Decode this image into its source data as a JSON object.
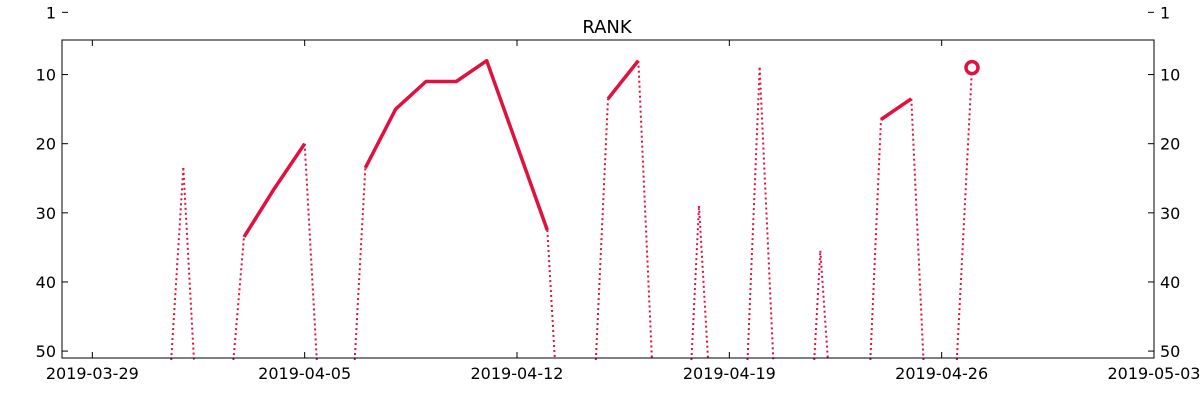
{
  "chart_data": {
    "type": "line",
    "title": "RANK",
    "xlabel": "",
    "ylabel": "",
    "x_axis": {
      "type": "date",
      "range": [
        "2019-03-28",
        "2019-05-03"
      ],
      "tick_labels": [
        "2019-03-29",
        "2019-04-05",
        "2019-04-12",
        "2019-04-19",
        "2019-04-26",
        "2019-05-03"
      ]
    },
    "y_axis": {
      "inverted": true,
      "range": [
        51,
        5
      ],
      "tick_values": [
        1,
        10,
        20,
        30,
        40,
        50
      ],
      "tick_labels": [
        "1",
        "10",
        "20",
        "30",
        "40",
        "50"
      ],
      "mirrored_right": true
    },
    "grid": false,
    "legend": "none",
    "colors": {
      "series": "#e0103f"
    },
    "series": [
      {
        "name": "",
        "points": [
          {
            "date": "2019-04-01",
            "rank": 23.5
          },
          {
            "date": "2019-04-03",
            "rank": 33.5
          },
          {
            "date": "2019-04-04",
            "rank": 26.5
          },
          {
            "date": "2019-04-05",
            "rank": 20.0
          },
          {
            "date": "2019-04-07",
            "rank": 23.5
          },
          {
            "date": "2019-04-08",
            "rank": 15.0
          },
          {
            "date": "2019-04-09",
            "rank": 11.0
          },
          {
            "date": "2019-04-10",
            "rank": 11.0
          },
          {
            "date": "2019-04-11",
            "rank": 8.0
          },
          {
            "date": "2019-04-13",
            "rank": 32.5
          },
          {
            "date": "2019-04-15",
            "rank": 13.5
          },
          {
            "date": "2019-04-16",
            "rank": 8.0
          },
          {
            "date": "2019-04-18",
            "rank": 29.0
          },
          {
            "date": "2019-04-20",
            "rank": 9.0
          },
          {
            "date": "2019-04-22",
            "rank": 35.5
          },
          {
            "date": "2019-04-24",
            "rank": 16.5
          },
          {
            "date": "2019-04-25",
            "rank": 13.5
          },
          {
            "date": "2019-04-27",
            "rank": 9.0
          }
        ],
        "solid_segments": [
          [
            "2019-04-03",
            "2019-04-05"
          ],
          [
            "2019-04-07",
            "2019-04-13"
          ],
          [
            "2019-04-15",
            "2019-04-16"
          ],
          [
            "2019-04-24",
            "2019-04-25"
          ]
        ],
        "dotted_dropouts": [
          {
            "from_date": "2019-03-31.6",
            "peak": "2019-04-01",
            "to_date": "2019-04-01.35"
          },
          {
            "from_date": "2019-04-02.65",
            "to": "2019-04-03"
          },
          {
            "from": "2019-04-05",
            "to_date": "2019-04-05.4"
          },
          {
            "from_date": "2019-04-06.65",
            "to": "2019-04-07"
          },
          {
            "from": "2019-04-13",
            "to_date": "2019-04-13.25"
          },
          {
            "from_date": "2019-04-14.6",
            "to": "2019-04-15"
          },
          {
            "from": "2019-04-16",
            "to_date": "2019-04-16.45"
          }
        ],
        "marker_last": {
          "date": "2019-04-27",
          "rank": 9.0,
          "style": "open-circle"
        }
      }
    ]
  }
}
